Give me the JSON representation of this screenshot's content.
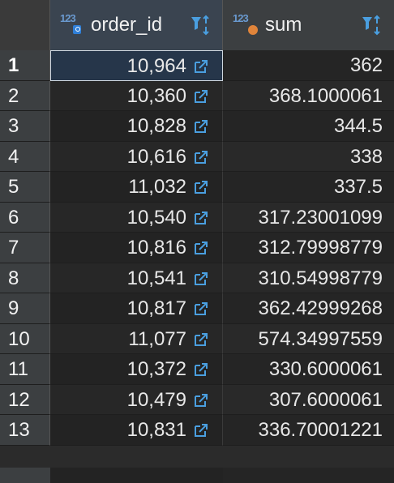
{
  "columns": [
    {
      "type_badge": "123",
      "name": "order_id",
      "badge": "key-icon"
    },
    {
      "type_badge": "123",
      "name": "sum",
      "badge": "dot-icon"
    }
  ],
  "rows": [
    {
      "n": "1",
      "order_id": "10,964",
      "sum": "362",
      "selected": true
    },
    {
      "n": "2",
      "order_id": "10,360",
      "sum": "368.1000061"
    },
    {
      "n": "3",
      "order_id": "10,828",
      "sum": "344.5"
    },
    {
      "n": "4",
      "order_id": "10,616",
      "sum": "338"
    },
    {
      "n": "5",
      "order_id": "11,032",
      "sum": "337.5"
    },
    {
      "n": "6",
      "order_id": "10,540",
      "sum": "317.23001099"
    },
    {
      "n": "7",
      "order_id": "10,816",
      "sum": "312.79998779"
    },
    {
      "n": "8",
      "order_id": "10,541",
      "sum": "310.54998779"
    },
    {
      "n": "9",
      "order_id": "10,817",
      "sum": "362.42999268"
    },
    {
      "n": "10",
      "order_id": "11,077",
      "sum": "574.34997559"
    },
    {
      "n": "11",
      "order_id": "10,372",
      "sum": "330.6000061"
    },
    {
      "n": "12",
      "order_id": "10,479",
      "sum": "307.6000061"
    },
    {
      "n": "13",
      "order_id": "10,831",
      "sum": "336.70001221"
    }
  ],
  "colors": {
    "accent": "#4a9fe0",
    "key_badge": "#2f7fd8",
    "dot_badge": "#e0843a",
    "selection_border": "#cfd7e0"
  }
}
